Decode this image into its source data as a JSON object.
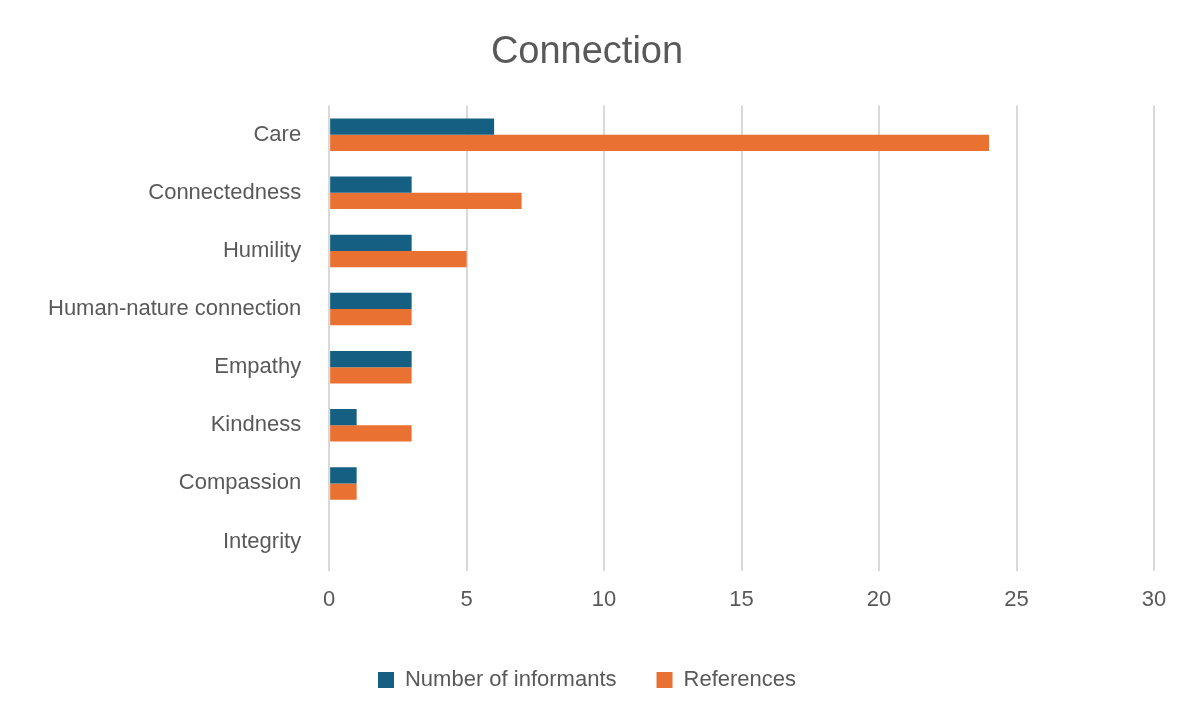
{
  "chart_data": {
    "type": "bar",
    "orientation": "horizontal",
    "title": "Connection",
    "categories": [
      "Care",
      "Connectedness",
      "Humility",
      "Human-nature connection",
      "Empathy",
      "Kindness",
      "Compassion",
      "Integrity"
    ],
    "series": [
      {
        "name": "Number of informants",
        "color": "#156082",
        "values": [
          6,
          3,
          3,
          3,
          3,
          1,
          1,
          0
        ]
      },
      {
        "name": "References",
        "color": "#e97132",
        "values": [
          24,
          7,
          5,
          3,
          3,
          3,
          1,
          0
        ]
      }
    ],
    "xlim": [
      0,
      30
    ],
    "xticks": [
      0,
      5,
      10,
      15,
      20,
      25,
      30
    ],
    "grid": "x",
    "legend": "bottom"
  }
}
